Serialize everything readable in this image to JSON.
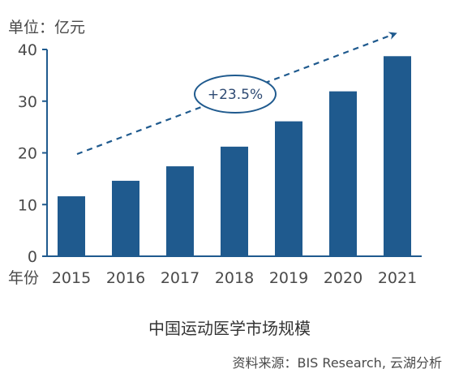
{
  "chart_data": {
    "type": "bar",
    "title": "中国运动医学市场规模",
    "ylabel": "单位：亿元",
    "xlabel": "年份",
    "categories": [
      "2015",
      "2016",
      "2017",
      "2018",
      "2019",
      "2020",
      "2021"
    ],
    "values": [
      11.6,
      14.6,
      17.4,
      21.2,
      26.1,
      31.9,
      38.7
    ],
    "ylim": [
      0,
      40
    ],
    "yticks": [
      0,
      10,
      20,
      30,
      40
    ],
    "grid": false,
    "bar_color": "#1f5a8e",
    "annotation": "+23.5%",
    "trend_color": "#1f5a8e",
    "source": "资料来源：BIS Research, 云湖分析"
  }
}
